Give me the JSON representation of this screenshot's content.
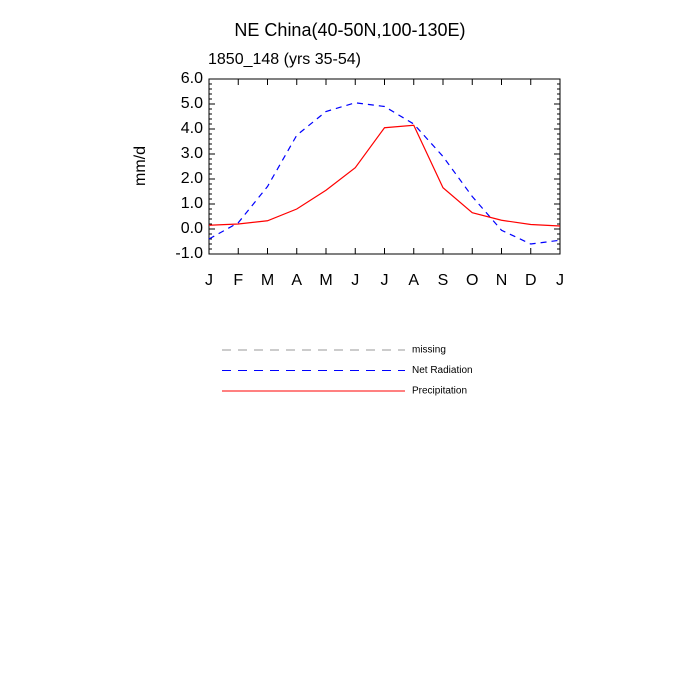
{
  "chart_data": {
    "type": "line",
    "title": "NE China(40-50N,100-130E)",
    "subtitle": "1850_148 (yrs 35-54)",
    "y_label": "mm/d",
    "categories": [
      "J",
      "F",
      "M",
      "A",
      "M",
      "J",
      "J",
      "A",
      "S",
      "O",
      "N",
      "D",
      "J"
    ],
    "ylim": [
      -1,
      6
    ],
    "yticks": [
      {
        "value": 6,
        "label": "6.0"
      },
      {
        "value": 5,
        "label": "5.0"
      },
      {
        "value": 4,
        "label": "4.0"
      },
      {
        "value": 3,
        "label": "3.0"
      },
      {
        "value": 2,
        "label": "2.0"
      },
      {
        "value": 1,
        "label": "1.0"
      },
      {
        "value": 0,
        "label": "0.0"
      },
      {
        "value": -1,
        "label": "-1.0"
      }
    ],
    "series": [
      {
        "name": "missing",
        "color": "#999999",
        "dash": true,
        "values": [
          null,
          null,
          null,
          null,
          null,
          null,
          null,
          null,
          null,
          null,
          null,
          null,
          null
        ]
      },
      {
        "name": "Net Radiation",
        "color": "#0000ff",
        "dash": true,
        "values": [
          -0.4,
          0.25,
          1.7,
          3.75,
          4.7,
          5.05,
          4.9,
          4.2,
          2.9,
          1.3,
          -0.05,
          -0.6,
          -0.45
        ]
      },
      {
        "name": "Precipitation",
        "color": "#ff0000",
        "dash": false,
        "values": [
          0.15,
          0.2,
          0.33,
          0.8,
          1.55,
          2.45,
          4.05,
          4.15,
          1.65,
          0.65,
          0.35,
          0.18,
          0.12
        ]
      }
    ]
  }
}
